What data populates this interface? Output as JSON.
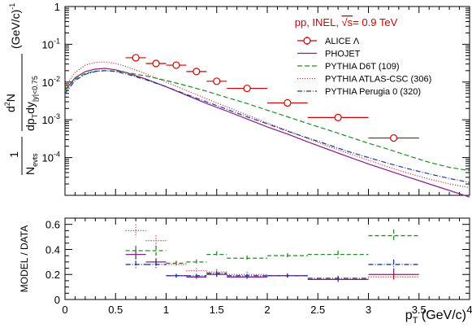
{
  "chart_data": [
    {
      "type": "line",
      "panel": "spectrum",
      "ylabel": "1/Nevts d²N/(dpT dy|y|<0.75) (GeV/c)⁻¹",
      "ylabel_parts": {
        "pre": "1",
        "nevts": "N",
        "nevts_sub": "evts",
        "d2n": "d",
        "d2n_sup": "2",
        "d2n_n": "N",
        "dp": "dp",
        "dp_sub": "T",
        "dy": "dy",
        "dy_sub": "|y|<0.75",
        "unit": "(GeV/c)",
        "unit_sup": "-1"
      },
      "y_scale": "log",
      "ylim": [
        1e-05,
        1
      ],
      "xlim": [
        0,
        4
      ],
      "y_tick_labels": [
        {
          "base": "10",
          "exp": "-4",
          "value": 0.0001
        },
        {
          "base": "10",
          "exp": "-3",
          "value": 0.001
        },
        {
          "base": "10",
          "exp": "-2",
          "value": 0.01
        },
        {
          "base": "10",
          "exp": "-1",
          "value": 0.1
        },
        {
          "base": "1",
          "exp": "",
          "value": 1
        }
      ],
      "annotation": {
        "pre": "pp, INEL, ",
        "sqrt": "√s",
        "post": "= 0.9 TeV",
        "color": "#cc0000"
      },
      "legend_position": "top-right",
      "data_points": {
        "name": "ALICE Λ",
        "color": "#cc0000",
        "points": [
          {
            "x": 0.7,
            "xerr": 0.1,
            "y": 0.044,
            "yerr": 0.004
          },
          {
            "x": 0.9,
            "xerr": 0.1,
            "y": 0.031,
            "yerr": 0.003
          },
          {
            "x": 1.1,
            "xerr": 0.1,
            "y": 0.028,
            "yerr": 0.002
          },
          {
            "x": 1.3,
            "xerr": 0.1,
            "y": 0.019,
            "yerr": 0.002
          },
          {
            "x": 1.5,
            "xerr": 0.1,
            "y": 0.0105,
            "yerr": 0.001
          },
          {
            "x": 1.8,
            "xerr": 0.2,
            "y": 0.0068,
            "yerr": 0.0006
          },
          {
            "x": 2.2,
            "xerr": 0.2,
            "y": 0.0028,
            "yerr": 0.0003
          },
          {
            "x": 2.7,
            "xerr": 0.3,
            "y": 0.00115,
            "yerr": 0.0001
          },
          {
            "x": 3.25,
            "xerr": 0.25,
            "y": 0.00033,
            "yerr": 4e-05
          }
        ]
      },
      "series": [
        {
          "name": "PHOJET",
          "color": "#8b1a8b",
          "dash": "solid",
          "x": [
            0.0,
            0.1,
            0.2,
            0.3,
            0.4,
            0.5,
            0.6,
            0.8,
            1.0,
            1.2,
            1.4,
            1.6,
            1.8,
            2.0,
            2.2,
            2.4,
            2.6,
            2.8,
            3.0,
            3.2,
            3.4,
            3.6,
            3.8,
            4.0
          ],
          "y": [
            0.006,
            0.013,
            0.019,
            0.022,
            0.023,
            0.021,
            0.018,
            0.012,
            0.0075,
            0.0045,
            0.0027,
            0.0017,
            0.00105,
            0.00065,
            0.00042,
            0.00026,
            0.000165,
            0.000105,
            6.8e-05,
            4.5e-05,
            3e-05,
            2e-05,
            1.35e-05,
            9e-06
          ]
        },
        {
          "name": "PYTHIA D6T (109)",
          "color": "#228b22",
          "dash": "6,3",
          "x": [
            0.0,
            0.1,
            0.2,
            0.3,
            0.4,
            0.5,
            0.6,
            0.8,
            1.0,
            1.2,
            1.4,
            1.6,
            1.8,
            2.0,
            2.2,
            2.4,
            2.6,
            2.8,
            3.0,
            3.2,
            3.4,
            3.6,
            3.8,
            4.0
          ],
          "y": [
            0.006,
            0.012,
            0.017,
            0.0195,
            0.02,
            0.0195,
            0.018,
            0.0145,
            0.011,
            0.008,
            0.0057,
            0.0039,
            0.0027,
            0.0018,
            0.0012,
            0.0008,
            0.00054,
            0.00036,
            0.00024,
            0.000165,
            0.00011,
            7.5e-05,
            5.5e-05,
            4.5e-05
          ]
        },
        {
          "name": "PYTHIA ATLAS-CSC (306)",
          "color": "#b22222",
          "dash": "1,2",
          "x": [
            0.0,
            0.1,
            0.2,
            0.3,
            0.4,
            0.5,
            0.6,
            0.8,
            1.0,
            1.2,
            1.4,
            1.6,
            1.8,
            2.0,
            2.2,
            2.4,
            2.6,
            2.8,
            3.0,
            3.2,
            3.4,
            3.6,
            3.8,
            4.0
          ],
          "y": [
            0.0075,
            0.018,
            0.028,
            0.033,
            0.034,
            0.031,
            0.026,
            0.0165,
            0.01,
            0.006,
            0.0036,
            0.0022,
            0.00135,
            0.00083,
            0.00052,
            0.00032,
            0.0002,
            0.00013,
            8.5e-05,
            5.6e-05,
            3.8e-05,
            2.7e-05,
            2e-05,
            1.6e-05
          ]
        },
        {
          "name": "PYTHIA Perugia 0 (320)",
          "color": "#1e3c8c",
          "dash": "6,2,1,2",
          "x": [
            0.0,
            0.1,
            0.2,
            0.3,
            0.4,
            0.5,
            0.6,
            0.8,
            1.0,
            1.2,
            1.4,
            1.6,
            1.8,
            2.0,
            2.2,
            2.4,
            2.6,
            2.8,
            3.0,
            3.2,
            3.4,
            3.6,
            3.8,
            4.0
          ],
          "y": [
            0.005,
            0.011,
            0.016,
            0.019,
            0.02,
            0.019,
            0.0165,
            0.0115,
            0.0075,
            0.0047,
            0.003,
            0.0019,
            0.0012,
            0.00078,
            0.0005,
            0.00033,
            0.00022,
            0.000145,
            0.0001,
            7e-05,
            5e-05,
            3.7e-05,
            2.8e-05,
            2.2e-05
          ]
        }
      ]
    },
    {
      "type": "scatter",
      "panel": "ratio",
      "ylabel": "MODEL / DATA",
      "xlabel": "p_T (GeV/c)",
      "xlabel_parts": {
        "p": "p",
        "sub": "T",
        "unit": " (GeV/c)"
      },
      "xlim": [
        0,
        4
      ],
      "ylim": [
        0,
        0.65
      ],
      "x_ticks": [
        0,
        0.5,
        1,
        1.5,
        2,
        2.5,
        3,
        3.5,
        4
      ],
      "x_tick_labels": [
        "0",
        "0.5",
        "1",
        "1.5",
        "2",
        "2.5",
        "3",
        "3.5",
        "4"
      ],
      "y_ticks": [
        0,
        0.2,
        0.4,
        0.6
      ],
      "y_tick_labels": [
        "0",
        "0.2",
        "0.4",
        "0.6"
      ],
      "bins": [
        {
          "lo": 0.6,
          "hi": 0.8
        },
        {
          "lo": 0.8,
          "hi": 1.0
        },
        {
          "lo": 1.0,
          "hi": 1.2
        },
        {
          "lo": 1.2,
          "hi": 1.4
        },
        {
          "lo": 1.4,
          "hi": 1.6
        },
        {
          "lo": 1.6,
          "hi": 2.0
        },
        {
          "lo": 2.0,
          "hi": 2.4
        },
        {
          "lo": 2.4,
          "hi": 3.0
        },
        {
          "lo": 3.0,
          "hi": 3.5
        }
      ],
      "series": [
        {
          "name": "PHOJET",
          "color": "#8b1a8b",
          "dash": "solid",
          "values": [
            0.36,
            0.3,
            0.19,
            0.18,
            0.2,
            0.18,
            0.19,
            0.16,
            0.2
          ],
          "errors": [
            0.04,
            0.03,
            0.015,
            0.015,
            0.02,
            0.015,
            0.015,
            0.02,
            0.04
          ]
        },
        {
          "name": "PYTHIA D6T (109)",
          "color": "#228b22",
          "dash": "5,3",
          "values": [
            0.39,
            0.39,
            0.29,
            0.3,
            0.36,
            0.33,
            0.35,
            0.36,
            0.51
          ],
          "errors": [
            0.04,
            0.04,
            0.02,
            0.02,
            0.025,
            0.02,
            0.02,
            0.03,
            0.05
          ]
        },
        {
          "name": "PYTHIA ATLAS-CSC (306)",
          "color": "#b22222",
          "dash": "1,2",
          "values": [
            0.55,
            0.47,
            0.28,
            0.23,
            0.22,
            0.2,
            0.19,
            0.16,
            0.18
          ],
          "errors": [
            0.05,
            0.04,
            0.02,
            0.02,
            0.02,
            0.02,
            0.02,
            0.02,
            0.03
          ]
        },
        {
          "name": "PYTHIA Perugia 0 (320)",
          "color": "#1e3c8c",
          "dash": "6,2,1,2",
          "values": [
            0.28,
            0.28,
            0.19,
            0.19,
            0.21,
            0.19,
            0.19,
            0.17,
            0.28
          ],
          "errors": [
            0.03,
            0.03,
            0.015,
            0.015,
            0.02,
            0.015,
            0.015,
            0.02,
            0.04
          ]
        }
      ]
    }
  ]
}
